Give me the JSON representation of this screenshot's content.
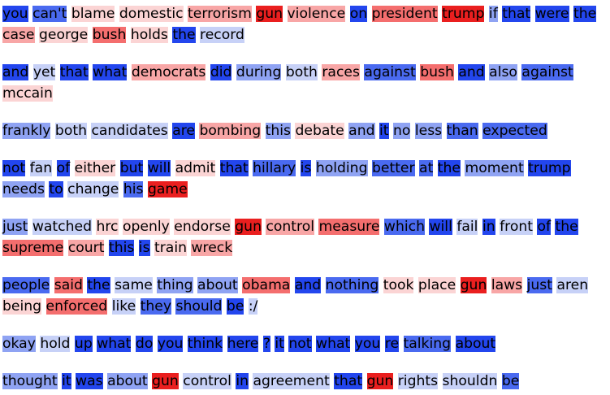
{
  "palette": {
    "b3": "#2346ee",
    "b2": "#4a6af0",
    "b1": "#8fa3f3",
    "b0": "#c7d1f7",
    "w": "#ffffff",
    "r0": "#fbd4d4",
    "r1": "#f8a6a6",
    "r2": "#f46e6e",
    "r3": "#ea1f1f"
  },
  "sentences": [
    {
      "tokens": [
        {
          "t": "you",
          "c": "b3"
        },
        {
          "t": "can't",
          "c": "b2"
        },
        {
          "t": "blame",
          "c": "r0"
        },
        {
          "t": "domestic",
          "c": "r0"
        },
        {
          "t": "terrorism",
          "c": "r1"
        },
        {
          "t": "gun",
          "c": "r3"
        },
        {
          "t": "violence",
          "c": "r1"
        },
        {
          "t": "on",
          "c": "b3"
        },
        {
          "t": "president",
          "c": "r2"
        },
        {
          "t": "trump",
          "c": "r3"
        },
        {
          "t": "if",
          "c": "b1"
        },
        {
          "t": "that",
          "c": "b3"
        },
        {
          "t": "were",
          "c": "b3"
        },
        {
          "t": "the",
          "c": "b3"
        },
        {
          "t": "case",
          "c": "r1"
        },
        {
          "t": "george",
          "c": "r0"
        },
        {
          "t": "bush",
          "c": "r2"
        },
        {
          "t": "holds",
          "c": "r0"
        },
        {
          "t": "the",
          "c": "b3"
        },
        {
          "t": "record",
          "c": "b0"
        }
      ]
    },
    {
      "tokens": [
        {
          "t": "and",
          "c": "b3"
        },
        {
          "t": "yet",
          "c": "b0"
        },
        {
          "t": "that",
          "c": "b3"
        },
        {
          "t": "what",
          "c": "b3"
        },
        {
          "t": "democrats",
          "c": "r1"
        },
        {
          "t": "did",
          "c": "b3"
        },
        {
          "t": "during",
          "c": "b1"
        },
        {
          "t": "both",
          "c": "b0"
        },
        {
          "t": "races",
          "c": "r1"
        },
        {
          "t": "against",
          "c": "b2"
        },
        {
          "t": "bush",
          "c": "r2"
        },
        {
          "t": "and",
          "c": "b3"
        },
        {
          "t": "also",
          "c": "b1"
        },
        {
          "t": "against",
          "c": "b2"
        },
        {
          "t": "mccain",
          "c": "r0"
        }
      ]
    },
    {
      "tokens": [
        {
          "t": "frankly",
          "c": "b1"
        },
        {
          "t": "both",
          "c": "b0"
        },
        {
          "t": "candidates",
          "c": "b0"
        },
        {
          "t": "are",
          "c": "b3"
        },
        {
          "t": "bombing",
          "c": "r1"
        },
        {
          "t": "this",
          "c": "b1"
        },
        {
          "t": "debate",
          "c": "r0"
        },
        {
          "t": "and",
          "c": "b1"
        },
        {
          "t": "it",
          "c": "b3"
        },
        {
          "t": "no",
          "c": "b1"
        },
        {
          "t": "less",
          "c": "b1"
        },
        {
          "t": "than",
          "c": "b2"
        },
        {
          "t": "expected",
          "c": "b2"
        }
      ]
    },
    {
      "tokens": [
        {
          "t": "not",
          "c": "b3"
        },
        {
          "t": "fan",
          "c": "b0"
        },
        {
          "t": "of",
          "c": "b3"
        },
        {
          "t": "either",
          "c": "r0"
        },
        {
          "t": "but",
          "c": "b3"
        },
        {
          "t": "will",
          "c": "b3"
        },
        {
          "t": "admit",
          "c": "r0"
        },
        {
          "t": "that",
          "c": "b3"
        },
        {
          "t": "hillary",
          "c": "b2"
        },
        {
          "t": "is",
          "c": "b3"
        },
        {
          "t": "holding",
          "c": "b1"
        },
        {
          "t": "better",
          "c": "b2"
        },
        {
          "t": "at",
          "c": "b2"
        },
        {
          "t": "the",
          "c": "b3"
        },
        {
          "t": "moment",
          "c": "b1"
        },
        {
          "t": "trump",
          "c": "b3"
        },
        {
          "t": "needs",
          "c": "b1"
        },
        {
          "t": "to",
          "c": "b3"
        },
        {
          "t": "change",
          "c": "b0"
        },
        {
          "t": "his",
          "c": "b2"
        },
        {
          "t": "game",
          "c": "r3"
        }
      ]
    },
    {
      "tokens": [
        {
          "t": "just",
          "c": "b1"
        },
        {
          "t": "watched",
          "c": "b0"
        },
        {
          "t": "hrc",
          "c": "r0"
        },
        {
          "t": "openly",
          "c": "r0"
        },
        {
          "t": "endorse",
          "c": "r0"
        },
        {
          "t": "gun",
          "c": "r3"
        },
        {
          "t": "control",
          "c": "r1"
        },
        {
          "t": "measure",
          "c": "r2"
        },
        {
          "t": "which",
          "c": "b2"
        },
        {
          "t": "will",
          "c": "b3"
        },
        {
          "t": "fail",
          "c": "b0"
        },
        {
          "t": "in",
          "c": "b3"
        },
        {
          "t": "front",
          "c": "b0"
        },
        {
          "t": "of",
          "c": "b3"
        },
        {
          "t": "the",
          "c": "b3"
        },
        {
          "t": "supreme",
          "c": "r2"
        },
        {
          "t": "court",
          "c": "r1"
        },
        {
          "t": "this",
          "c": "b3"
        },
        {
          "t": "is",
          "c": "b3"
        },
        {
          "t": "train",
          "c": "r0"
        },
        {
          "t": "wreck",
          "c": "r1"
        }
      ]
    },
    {
      "tokens": [
        {
          "t": "people",
          "c": "b2"
        },
        {
          "t": "said",
          "c": "r2"
        },
        {
          "t": "the",
          "c": "b3"
        },
        {
          "t": "same",
          "c": "b0"
        },
        {
          "t": "thing",
          "c": "b1"
        },
        {
          "t": "about",
          "c": "b1"
        },
        {
          "t": "obama",
          "c": "r2"
        },
        {
          "t": "and",
          "c": "b3"
        },
        {
          "t": "nothing",
          "c": "b2"
        },
        {
          "t": "took",
          "c": "r0"
        },
        {
          "t": "place",
          "c": "r0"
        },
        {
          "t": "gun",
          "c": "r3"
        },
        {
          "t": "laws",
          "c": "r1"
        },
        {
          "t": "just",
          "c": "b2"
        },
        {
          "t": "aren",
          "c": "b0"
        },
        {
          "t": "being",
          "c": "r0"
        },
        {
          "t": "enforced",
          "c": "r2"
        },
        {
          "t": "like",
          "c": "b0"
        },
        {
          "t": "they",
          "c": "b2"
        },
        {
          "t": "should",
          "c": "b2"
        },
        {
          "t": "be",
          "c": "b3"
        },
        {
          "t": ":/",
          "c": "b0"
        }
      ]
    },
    {
      "tokens": [
        {
          "t": "okay",
          "c": "b1"
        },
        {
          "t": "hold",
          "c": "b0"
        },
        {
          "t": "up",
          "c": "b3"
        },
        {
          "t": "what",
          "c": "b3"
        },
        {
          "t": "do",
          "c": "b3"
        },
        {
          "t": "you",
          "c": "b3"
        },
        {
          "t": "think",
          "c": "b3"
        },
        {
          "t": "here",
          "c": "b3"
        },
        {
          "t": "?",
          "c": "b3"
        },
        {
          "t": "it",
          "c": "b3"
        },
        {
          "t": "not",
          "c": "b3"
        },
        {
          "t": "what",
          "c": "b3"
        },
        {
          "t": "you",
          "c": "b3"
        },
        {
          "t": "re",
          "c": "b3"
        },
        {
          "t": "talking",
          "c": "b2"
        },
        {
          "t": "about",
          "c": "b3"
        }
      ]
    },
    {
      "tokens": [
        {
          "t": "thought",
          "c": "b1"
        },
        {
          "t": "it",
          "c": "b3"
        },
        {
          "t": "was",
          "c": "b3"
        },
        {
          "t": "about",
          "c": "b1"
        },
        {
          "t": "gun",
          "c": "r3"
        },
        {
          "t": "control",
          "c": "b0"
        },
        {
          "t": "in",
          "c": "b3"
        },
        {
          "t": "agreement",
          "c": "b0"
        },
        {
          "t": "that",
          "c": "b3"
        },
        {
          "t": "gun",
          "c": "r3"
        },
        {
          "t": "rights",
          "c": "b0"
        },
        {
          "t": "shouldn",
          "c": "b0"
        },
        {
          "t": "be",
          "c": "b2"
        }
      ]
    }
  ]
}
